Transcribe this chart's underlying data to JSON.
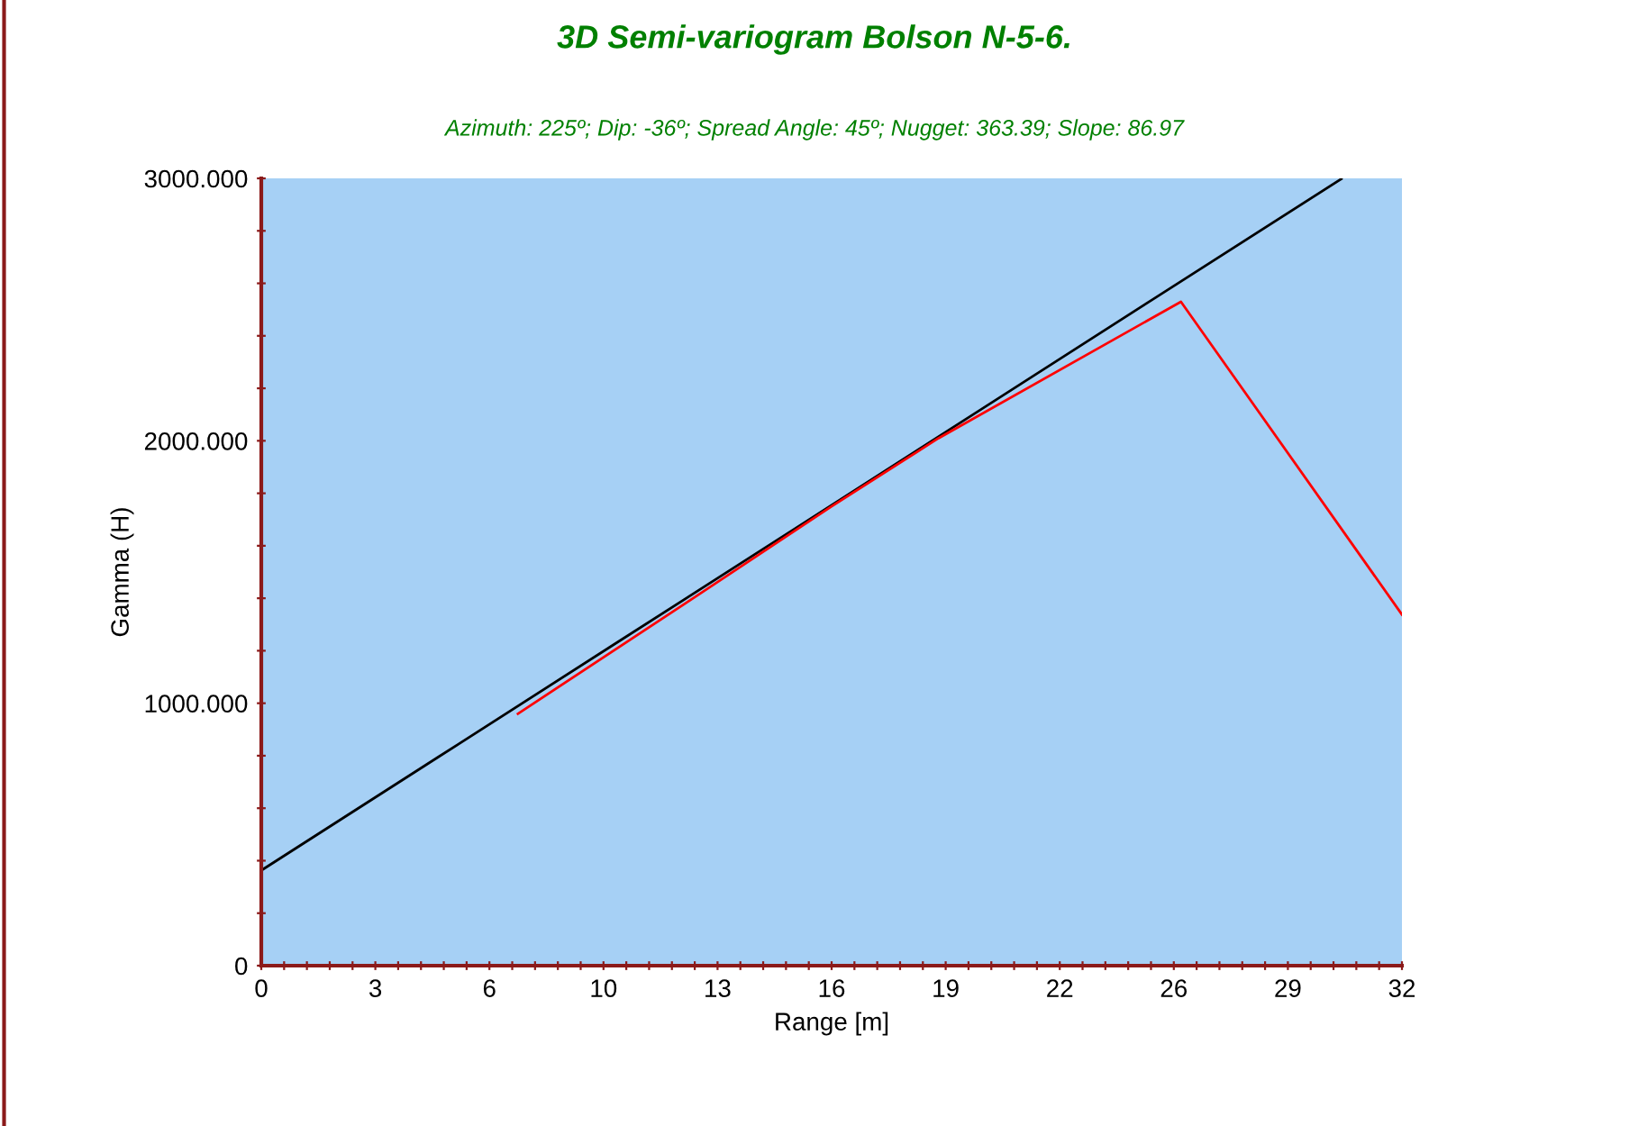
{
  "chart_data": {
    "type": "line",
    "title": "3D Semi-variogram Bolson N-5-6.",
    "subtitle": "Azimuth: 225º; Dip: -36º; Spread Angle: 45º; Nugget: 363.39; Slope: 86.97",
    "xlabel": "Range [m]",
    "ylabel": "Gamma (H)",
    "series": [
      {
        "color": "#000000",
        "x": [
          0,
          5,
          10,
          15,
          20,
          25,
          30.3
        ],
        "values": [
          363,
          798,
          1233,
          1668,
          2103,
          2538,
          2998
        ]
      },
      {
        "color": "#ff0000",
        "x": [
          7.2,
          12,
          16,
          19,
          25.8,
          32
        ],
        "values": [
          960,
          1390,
          1750,
          2010,
          2530,
          1338
        ]
      }
    ],
    "xlim": [
      0,
      32
    ],
    "xticks": [
      0,
      {
        "value": 0.64,
        "label": null
      },
      {
        "value": 1.28,
        "label": null
      },
      {
        "value": 1.92,
        "label": null
      },
      {
        "value": 2.56,
        "label": null
      },
      {
        "value": 3.2,
        "label": "3"
      },
      {
        "value": 3.84,
        "label": null
      },
      {
        "value": 4.48,
        "label": null
      },
      {
        "value": 5.12,
        "label": null
      },
      {
        "value": 5.76,
        "label": null
      },
      {
        "value": 6.4,
        "label": "6"
      },
      {
        "value": 7.04,
        "label": null
      },
      {
        "value": 7.68,
        "label": null
      },
      {
        "value": 8.32,
        "label": null
      },
      {
        "value": 8.96,
        "label": null
      },
      {
        "value": 9.6,
        "label": "10"
      },
      {
        "value": 10.24,
        "label": null
      },
      {
        "value": 10.88,
        "label": null
      },
      {
        "value": 11.52,
        "label": null
      },
      {
        "value": 12.16,
        "label": null
      },
      {
        "value": 12.8,
        "label": "13"
      },
      {
        "value": 13.44,
        "label": null
      },
      {
        "value": 14.08,
        "label": null
      },
      {
        "value": 14.72,
        "label": null
      },
      {
        "value": 15.36,
        "label": null
      },
      16,
      {
        "value": 16.64,
        "label": null
      },
      {
        "value": 17.28,
        "label": null
      },
      {
        "value": 17.92,
        "label": null
      },
      {
        "value": 18.56,
        "label": null
      },
      {
        "value": 19.2,
        "label": "19"
      },
      {
        "value": 19.84,
        "label": null
      },
      {
        "value": 20.48,
        "label": null
      },
      {
        "value": 21.12,
        "label": null
      },
      {
        "value": 21.76,
        "label": null
      },
      {
        "value": 22.4,
        "label": "22"
      },
      {
        "value": 23.04,
        "label": null
      },
      {
        "value": 23.68,
        "label": null
      },
      {
        "value": 24.32,
        "label": null
      },
      {
        "value": 24.96,
        "label": null
      },
      {
        "value": 25.6,
        "label": "26"
      },
      {
        "value": 26.24,
        "label": null
      },
      {
        "value": 26.88,
        "label": null
      },
      {
        "value": 27.52,
        "label": null
      },
      {
        "value": 28.16,
        "label": null
      },
      {
        "value": 28.8,
        "label": "29"
      },
      {
        "value": 29.44,
        "label": null
      },
      {
        "value": 30.08,
        "label": null
      },
      {
        "value": 30.72,
        "label": null
      },
      {
        "value": 31.36,
        "label": null
      },
      32
    ],
    "ylim": [
      0,
      3000
    ],
    "yticks": [
      {
        "value": 0,
        "label": "0"
      },
      {
        "value": 200,
        "label": null
      },
      {
        "value": 400,
        "label": null
      },
      {
        "value": 600,
        "label": null
      },
      {
        "value": 800,
        "label": null
      },
      {
        "value": 1000,
        "label": "1000.000"
      },
      {
        "value": 1200,
        "label": null
      },
      {
        "value": 1400,
        "label": null
      },
      {
        "value": 1600,
        "label": null
      },
      {
        "value": 1800,
        "label": null
      },
      {
        "value": 2000,
        "label": "2000.000"
      },
      {
        "value": 2200,
        "label": null
      },
      {
        "value": 2400,
        "label": null
      },
      {
        "value": 2600,
        "label": null
      },
      {
        "value": 2800,
        "label": null
      },
      {
        "value": 3000,
        "label": "3000.000"
      }
    ],
    "grid": false,
    "marker": "none",
    "line_style": "solid"
  }
}
